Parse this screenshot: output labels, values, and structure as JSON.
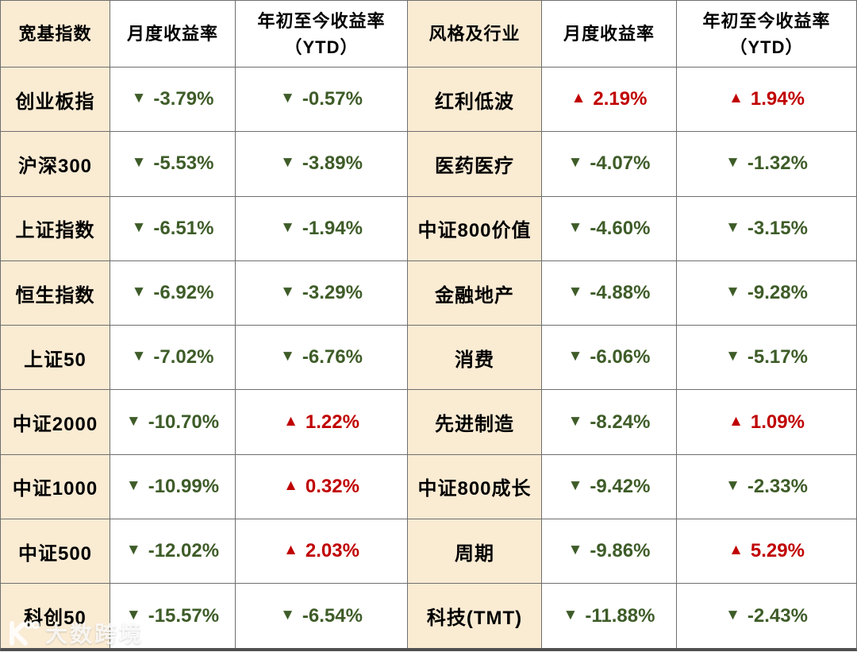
{
  "colors": {
    "up_red": "#c00000",
    "down_green": "#3e5c28",
    "category_beige": "#faebd3",
    "grid_line": "#6e6e6e"
  },
  "icons": {
    "up": "▲",
    "down": "▼"
  },
  "left_table": {
    "header": {
      "category": "宽基指数",
      "monthly": "月度收益率",
      "ytd_line1": "年初至今收益率",
      "ytd_line2": "（YTD）"
    },
    "rows": [
      {
        "name": "创业板指",
        "monthly": {
          "dir": "down",
          "text": "-3.79%"
        },
        "ytd": {
          "dir": "down",
          "text": "-0.57%"
        }
      },
      {
        "name": "沪深300",
        "monthly": {
          "dir": "down",
          "text": "-5.53%"
        },
        "ytd": {
          "dir": "down",
          "text": "-3.89%"
        }
      },
      {
        "name": "上证指数",
        "monthly": {
          "dir": "down",
          "text": "-6.51%"
        },
        "ytd": {
          "dir": "down",
          "text": "-1.94%"
        }
      },
      {
        "name": "恒生指数",
        "monthly": {
          "dir": "down",
          "text": "-6.92%"
        },
        "ytd": {
          "dir": "down",
          "text": "-3.29%"
        }
      },
      {
        "name": "上证50",
        "monthly": {
          "dir": "down",
          "text": "-7.02%"
        },
        "ytd": {
          "dir": "down",
          "text": "-6.76%"
        }
      },
      {
        "name": "中证2000",
        "monthly": {
          "dir": "down",
          "text": "-10.70%"
        },
        "ytd": {
          "dir": "up",
          "text": "1.22%"
        }
      },
      {
        "name": "中证1000",
        "monthly": {
          "dir": "down",
          "text": "-10.99%"
        },
        "ytd": {
          "dir": "up",
          "text": "0.32%"
        }
      },
      {
        "name": "中证500",
        "monthly": {
          "dir": "down",
          "text": "-12.02%"
        },
        "ytd": {
          "dir": "up",
          "text": "2.03%"
        }
      },
      {
        "name": "科创50",
        "monthly": {
          "dir": "down",
          "text": "-15.57%"
        },
        "ytd": {
          "dir": "down",
          "text": "-6.54%"
        }
      }
    ]
  },
  "right_table": {
    "header": {
      "category": "风格及行业",
      "monthly": "月度收益率",
      "ytd_line1": "年初至今收益率",
      "ytd_line2": "（YTD）"
    },
    "rows": [
      {
        "name": "红利低波",
        "monthly": {
          "dir": "up",
          "text": "2.19%"
        },
        "ytd": {
          "dir": "up",
          "text": "1.94%"
        }
      },
      {
        "name": "医药医疗",
        "monthly": {
          "dir": "down",
          "text": "-4.07%"
        },
        "ytd": {
          "dir": "down",
          "text": "-1.32%"
        }
      },
      {
        "name": "中证800价值",
        "monthly": {
          "dir": "down",
          "text": "-4.60%"
        },
        "ytd": {
          "dir": "down",
          "text": "-3.15%"
        }
      },
      {
        "name": "金融地产",
        "monthly": {
          "dir": "down",
          "text": "-4.88%"
        },
        "ytd": {
          "dir": "down",
          "text": "-9.28%"
        }
      },
      {
        "name": "消费",
        "monthly": {
          "dir": "down",
          "text": "-6.06%"
        },
        "ytd": {
          "dir": "down",
          "text": "-5.17%"
        }
      },
      {
        "name": "先进制造",
        "monthly": {
          "dir": "down",
          "text": "-8.24%"
        },
        "ytd": {
          "dir": "up",
          "text": "1.09%"
        }
      },
      {
        "name": "中证800成长",
        "monthly": {
          "dir": "down",
          "text": "-9.42%"
        },
        "ytd": {
          "dir": "down",
          "text": "-2.33%"
        }
      },
      {
        "name": "周期",
        "monthly": {
          "dir": "down",
          "text": "-9.86%"
        },
        "ytd": {
          "dir": "up",
          "text": "5.29%"
        }
      },
      {
        "name": "科技(TMT)",
        "monthly": {
          "dir": "down",
          "text": "-11.88%"
        },
        "ytd": {
          "dir": "down",
          "text": "-2.43%"
        }
      }
    ]
  },
  "watermark": {
    "text": "大数跨境"
  },
  "chart_data": [
    {
      "type": "table",
      "title": "宽基指数",
      "columns": [
        "宽基指数",
        "月度收益率",
        "年初至今收益率（YTD）"
      ],
      "rows": [
        [
          "创业板指",
          -3.79,
          -0.57
        ],
        [
          "沪深300",
          -5.53,
          -3.89
        ],
        [
          "上证指数",
          -6.51,
          -1.94
        ],
        [
          "恒生指数",
          -6.92,
          -3.29
        ],
        [
          "上证50",
          -7.02,
          -6.76
        ],
        [
          "中证2000",
          -10.7,
          1.22
        ],
        [
          "中证1000",
          -10.99,
          0.32
        ],
        [
          "中证500",
          -12.02,
          2.03
        ],
        [
          "科创50",
          -15.57,
          -6.54
        ]
      ],
      "legend_note": "green down triangle = negative, red up triangle = positive"
    },
    {
      "type": "table",
      "title": "风格及行业",
      "columns": [
        "风格及行业",
        "月度收益率",
        "年初至今收益率（YTD）"
      ],
      "rows": [
        [
          "红利低波",
          2.19,
          1.94
        ],
        [
          "医药医疗",
          -4.07,
          -1.32
        ],
        [
          "中证800价值",
          -4.6,
          -3.15
        ],
        [
          "金融地产",
          -4.88,
          -9.28
        ],
        [
          "消费",
          -6.06,
          -5.17
        ],
        [
          "先进制造",
          -8.24,
          1.09
        ],
        [
          "中证800成长",
          -9.42,
          -2.33
        ],
        [
          "周期",
          -9.86,
          5.29
        ],
        [
          "科技(TMT)",
          -11.88,
          -2.43
        ]
      ],
      "legend_note": "green down triangle = negative, red up triangle = positive"
    }
  ]
}
